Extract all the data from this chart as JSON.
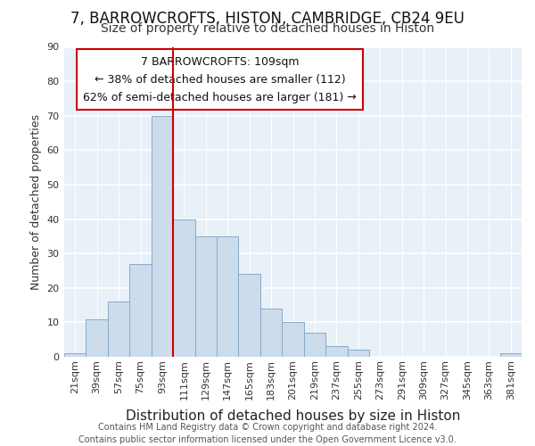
{
  "title1": "7, BARROWCROFTS, HISTON, CAMBRIDGE, CB24 9EU",
  "title2": "Size of property relative to detached houses in Histon",
  "xlabel": "Distribution of detached houses by size in Histon",
  "ylabel": "Number of detached properties",
  "bar_labels": [
    "21sqm",
    "39sqm",
    "57sqm",
    "75sqm",
    "93sqm",
    "111sqm",
    "129sqm",
    "147sqm",
    "165sqm",
    "183sqm",
    "201sqm",
    "219sqm",
    "237sqm",
    "255sqm",
    "273sqm",
    "291sqm",
    "309sqm",
    "327sqm",
    "345sqm",
    "363sqm",
    "381sqm"
  ],
  "bar_values": [
    1,
    11,
    16,
    27,
    70,
    40,
    35,
    35,
    24,
    14,
    10,
    7,
    3,
    2,
    0,
    0,
    0,
    0,
    0,
    0,
    1
  ],
  "bar_color": "#ccdcec",
  "bar_edgecolor": "#88aac8",
  "property_label": "7 BARROWCROFTS: 109sqm",
  "annotation_line1": "← 38% of detached houses are smaller (112)",
  "annotation_line2": "62% of semi-detached houses are larger (181) →",
  "vline_color": "#cc0000",
  "annotation_box_edgecolor": "#cc0000",
  "background_color": "#ffffff",
  "plot_background": "#e8f0f8",
  "grid_color": "#ffffff",
  "footer_line1": "Contains HM Land Registry data © Crown copyright and database right 2024.",
  "footer_line2": "Contains public sector information licensed under the Open Government Licence v3.0.",
  "ylim": [
    0,
    90
  ],
  "yticks": [
    0,
    10,
    20,
    30,
    40,
    50,
    60,
    70,
    80,
    90
  ],
  "vline_bin_index": 5,
  "title1_fontsize": 12,
  "title2_fontsize": 10,
  "xlabel_fontsize": 11,
  "ylabel_fontsize": 9,
  "tick_fontsize": 8,
  "annotation_fontsize": 9,
  "footer_fontsize": 7
}
